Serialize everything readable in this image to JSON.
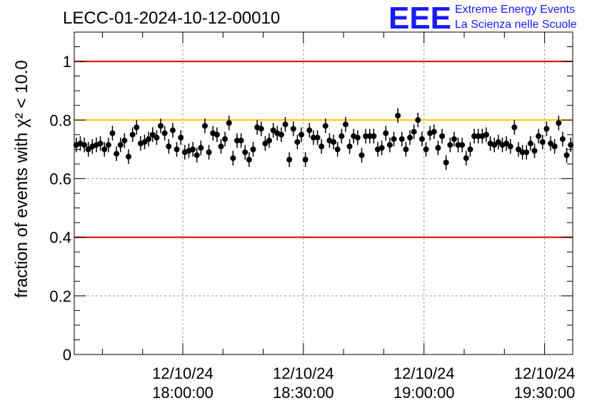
{
  "chart_data": {
    "type": "scatter",
    "title": "LECC-01-2024-10-12-00010",
    "ylabel": "fraction of events with χ² < 10.0",
    "xlabel": "",
    "ylim": [
      0,
      1.1
    ],
    "xlim": [
      "17:33:00",
      "19:37:00"
    ],
    "y_ticks": [
      "0",
      "0.2",
      "0.4",
      "0.6",
      "0.8",
      "1"
    ],
    "x_ticks": [
      {
        "date": "12/10/24",
        "time": "18:00:00"
      },
      {
        "date": "12/10/24",
        "time": "18:30:00"
      },
      {
        "date": "12/10/24",
        "time": "19:00:00"
      },
      {
        "date": "12/10/24",
        "time": "19:30:00"
      }
    ],
    "grid": true,
    "reference_lines": [
      {
        "y": 1.0,
        "color": "#e00000"
      },
      {
        "y": 0.8,
        "color": "#ffc000"
      },
      {
        "y": 0.4,
        "color": "#e00000"
      }
    ],
    "series": [
      {
        "values": [
          0.715,
          0.72,
          0.715,
          0.7,
          0.71,
          0.715,
          0.72,
          0.7,
          0.715,
          0.755,
          0.685,
          0.715,
          0.73,
          0.675,
          0.75,
          0.775,
          0.72,
          0.725,
          0.735,
          0.75,
          0.74,
          0.78,
          0.755,
          0.71,
          0.765,
          0.7,
          0.74,
          0.69,
          0.695,
          0.7,
          0.68,
          0.705,
          0.78,
          0.69,
          0.755,
          0.75,
          0.71,
          0.735,
          0.79,
          0.67,
          0.73,
          0.73,
          0.69,
          0.665,
          0.7,
          0.775,
          0.77,
          0.72,
          0.73,
          0.765,
          0.755,
          0.75,
          0.785,
          0.665,
          0.77,
          0.725,
          0.75,
          0.665,
          0.765,
          0.74,
          0.74,
          0.71,
          0.78,
          0.73,
          0.725,
          0.7,
          0.745,
          0.785,
          0.71,
          0.745,
          0.74,
          0.68,
          0.745,
          0.745,
          0.745,
          0.7,
          0.705,
          0.755,
          0.715,
          0.735,
          0.815,
          0.735,
          0.7,
          0.74,
          0.76,
          0.8,
          0.735,
          0.7,
          0.755,
          0.76,
          0.705,
          0.745,
          0.655,
          0.715,
          0.735,
          0.715,
          0.715,
          0.67,
          0.7,
          0.745,
          0.745,
          0.745,
          0.75,
          0.72,
          0.715,
          0.725,
          0.715,
          0.72,
          0.71,
          0.775,
          0.7,
          0.69,
          0.69,
          0.72,
          0.695,
          0.745,
          0.725,
          0.77,
          0.72,
          0.71,
          0.79,
          0.735,
          0.68,
          0.715
        ],
        "error": 0.025
      }
    ]
  },
  "logo": {
    "mark": "EEE",
    "line1": "Extreme Energy Events",
    "line2": "La Scienza nelle Scuole",
    "color": "#1a1aff"
  }
}
